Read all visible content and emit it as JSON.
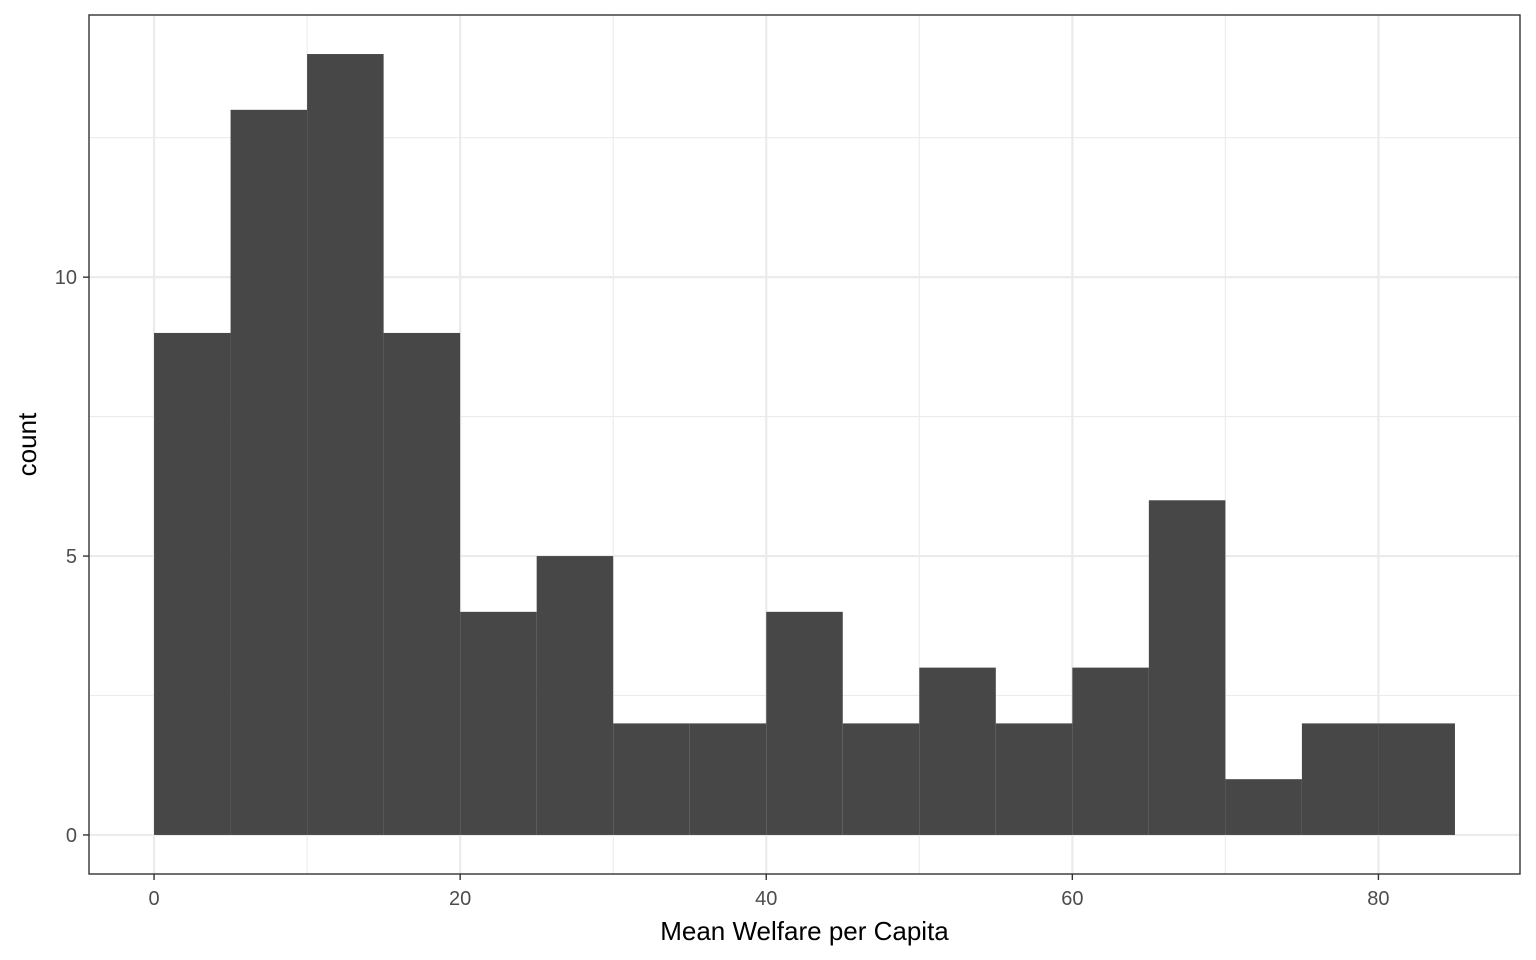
{
  "chart_data": {
    "type": "bar",
    "subtype": "histogram",
    "title": "",
    "xlabel": "Mean Welfare per Capita",
    "ylabel": "count",
    "bin_width": 5,
    "bins": [
      {
        "x0": 0,
        "x1": 5,
        "count": 9
      },
      {
        "x0": 5,
        "x1": 10,
        "count": 13
      },
      {
        "x0": 10,
        "x1": 15,
        "count": 14
      },
      {
        "x0": 15,
        "x1": 20,
        "count": 9
      },
      {
        "x0": 20,
        "x1": 25,
        "count": 4
      },
      {
        "x0": 25,
        "x1": 30,
        "count": 5
      },
      {
        "x0": 30,
        "x1": 35,
        "count": 2
      },
      {
        "x0": 35,
        "x1": 40,
        "count": 2
      },
      {
        "x0": 40,
        "x1": 45,
        "count": 4
      },
      {
        "x0": 45,
        "x1": 50,
        "count": 2
      },
      {
        "x0": 50,
        "x1": 55,
        "count": 3
      },
      {
        "x0": 55,
        "x1": 60,
        "count": 2
      },
      {
        "x0": 60,
        "x1": 65,
        "count": 3
      },
      {
        "x0": 65,
        "x1": 70,
        "count": 6
      },
      {
        "x0": 70,
        "x1": 75,
        "count": 1
      },
      {
        "x0": 75,
        "x1": 80,
        "count": 2
      },
      {
        "x0": 80,
        "x1": 85,
        "count": 2
      }
    ],
    "xlim": [
      -4.25,
      89.25
    ],
    "ylim": [
      -0.7,
      14.7
    ],
    "x_ticks": [
      0,
      20,
      40,
      60,
      80
    ],
    "x_minor_ticks": [
      10,
      30,
      50,
      70
    ],
    "y_ticks": [
      0,
      5,
      10
    ],
    "y_minor_ticks": [
      2.5,
      7.5,
      12.5
    ],
    "grid": true,
    "legend": "none",
    "colors": {
      "bar": "#474747",
      "grid": "#ebebeb",
      "panel_border": "#333333",
      "tick_label": "#4d4d4d"
    }
  }
}
